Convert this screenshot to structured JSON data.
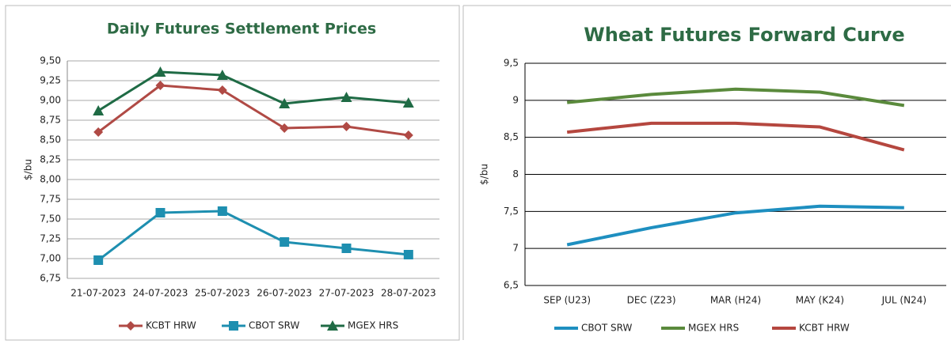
{
  "chart_data": [
    {
      "type": "line",
      "title": "Daily Futures Settlement Prices",
      "ylabel": "$/bu",
      "categories": [
        "21-07-2023",
        "24-07-2023",
        "25-07-2023",
        "26-07-2023",
        "27-07-2023",
        "28-07-2023"
      ],
      "series": [
        {
          "name": "KCBT HRW",
          "color": "#b04a45",
          "marker": "diamond",
          "values": [
            8.6,
            9.19,
            9.13,
            8.65,
            8.67,
            8.56
          ]
        },
        {
          "name": "CBOT SRW",
          "color": "#1e8fb0",
          "marker": "square",
          "values": [
            6.98,
            7.58,
            7.6,
            7.21,
            7.13,
            7.05
          ]
        },
        {
          "name": "MGEX HRS",
          "color": "#1f6b45",
          "marker": "triangle",
          "values": [
            8.87,
            9.36,
            9.32,
            8.96,
            9.04,
            8.97
          ]
        }
      ],
      "ylim": [
        6.75,
        9.5
      ],
      "yticks": [
        {
          "value": 6.75,
          "label": "6,75"
        },
        {
          "value": 7,
          "label": "7,00"
        },
        {
          "value": 7.25,
          "label": "7,25"
        },
        {
          "value": 7.5,
          "label": "7,50"
        },
        {
          "value": 7.75,
          "label": "7,75"
        },
        {
          "value": 8,
          "label": "8,00"
        },
        {
          "value": 8.25,
          "label": "8,25"
        },
        {
          "value": 8.5,
          "label": "8,50"
        },
        {
          "value": 8.75,
          "label": "8,75"
        },
        {
          "value": 9,
          "label": "9,00"
        },
        {
          "value": 9.25,
          "label": "9,25"
        },
        {
          "value": 9.5,
          "label": "9,50"
        }
      ],
      "grid": true,
      "legend": "bottom"
    },
    {
      "type": "line",
      "title": "Wheat Futures Forward Curve",
      "ylabel": "$/bu",
      "categories": [
        "SEP (U23)",
        "DEC (Z23)",
        "MAR (H24)",
        "MAY (K24)",
        "JUL (N24)"
      ],
      "series": [
        {
          "name": "CBOT SRW",
          "color": "#1e8fc0",
          "values": [
            7.05,
            7.28,
            7.48,
            7.57,
            7.55
          ]
        },
        {
          "name": "MGEX HRS",
          "color": "#5a8a3c",
          "values": [
            8.97,
            9.08,
            9.15,
            9.11,
            8.93
          ]
        },
        {
          "name": "KCBT HRW",
          "color": "#b5473f",
          "values": [
            8.57,
            8.69,
            8.69,
            8.64,
            8.33
          ]
        }
      ],
      "ylim": [
        6.5,
        9.5
      ],
      "yticks": [
        {
          "value": 6.5,
          "label": "6,5"
        },
        7,
        {
          "value": 7.5,
          "label": "7,5"
        },
        8,
        {
          "value": 8.5,
          "label": "8,5"
        },
        9,
        {
          "value": 9.5,
          "label": "9,5"
        }
      ],
      "grid": true,
      "legend": "bottom"
    }
  ]
}
